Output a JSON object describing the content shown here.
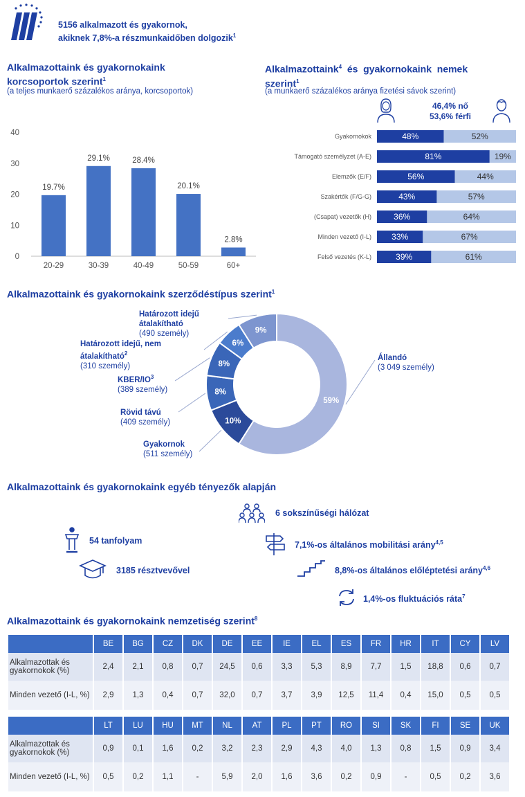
{
  "header": {
    "line1": "5156 alkalmazott és gyakornok,",
    "line2": "akiknek 7,8%-a részmunkaidőben dolgozik",
    "line2_sup": "1"
  },
  "age_section": {
    "title_line1": "Alkalmazottaink  és  gyakornokaink",
    "title_line2": "korcsoportok szerint",
    "title_sup": "1",
    "subtitle": "(a teljes munkaerő százalékos aránya, korcsoportok)"
  },
  "gender_section": {
    "title_line1": "Alkalmazottaink",
    "title_sup1": "4",
    "title_line1b": "  és  gyakornokaink  nemek",
    "title_line2": "szerint",
    "title_sup2": "1",
    "subtitle": "(a munkaerő százalékos aránya fizetési sávok szerint)",
    "summary_line1": "46,4% nő",
    "summary_line2": "53,6% férfi"
  },
  "contract_section": {
    "title": "Alkalmazottaink  és  gyakornokaink  szerződéstípus  szerint",
    "title_sup": "1"
  },
  "other_section": {
    "title": "Alkalmazottaink  és  gyakornokaink  egyéb  tényezők  alapján",
    "facts": {
      "courses": "54 tanfolyam",
      "participants": "3185 résztvevővel",
      "networks": "6 sokszínűségi hálózat",
      "mobility": "7,1%-os általános mobilitási arány",
      "mobility_sup": "4,5",
      "promotion": "8,8%-os általános előléptetési arány",
      "promotion_sup": "4,6",
      "turnover": "1,4%-os fluktuációs ráta",
      "turnover_sup": "7"
    }
  },
  "nationality_section": {
    "title": "Alkalmazottaink  és  gyakornokaink  nemzetiség  szerint",
    "title_sup": "8",
    "row1_label": "Alkalmazottak és gyakornokok (%)",
    "row2_label": "Minden vezető (I-L, %)",
    "table1": {
      "countries": [
        "BE",
        "BG",
        "CZ",
        "DK",
        "DE",
        "EE",
        "IE",
        "EL",
        "ES",
        "FR",
        "HR",
        "IT",
        "CY",
        "LV"
      ],
      "staff": [
        "2,4",
        "2,1",
        "0,8",
        "0,7",
        "24,5",
        "0,6",
        "3,3",
        "5,3",
        "8,9",
        "7,7",
        "1,5",
        "18,8",
        "0,6",
        "0,7"
      ],
      "managers": [
        "2,9",
        "1,3",
        "0,4",
        "0,7",
        "32,0",
        "0,7",
        "3,7",
        "3,9",
        "12,5",
        "11,4",
        "0,4",
        "15,0",
        "0,5",
        "0,5"
      ]
    },
    "table2": {
      "countries": [
        "LT",
        "LU",
        "HU",
        "MT",
        "NL",
        "AT",
        "PL",
        "PT",
        "RO",
        "SI",
        "SK",
        "FI",
        "SE",
        "UK"
      ],
      "staff": [
        "0,9",
        "0,1",
        "1,6",
        "0,2",
        "3,2",
        "2,3",
        "2,9",
        "4,3",
        "4,0",
        "1,3",
        "0,8",
        "1,5",
        "0,9",
        "3,4"
      ],
      "managers": [
        "0,5",
        "0,2",
        "1,1",
        "-",
        "5,9",
        "2,0",
        "1,6",
        "3,6",
        "0,2",
        "0,9",
        "-",
        "0,5",
        "0,2",
        "3,6"
      ]
    }
  },
  "chart_data": [
    {
      "type": "bar",
      "categories": [
        "20-29",
        "30-39",
        "40-49",
        "50-59",
        "60+"
      ],
      "values": [
        19.7,
        29.1,
        28.4,
        20.1,
        2.8
      ],
      "value_labels": [
        "19.7%",
        "29.1%",
        "28.4%",
        "20.1%",
        "2.8%"
      ],
      "yticks": [
        0,
        10,
        20,
        30,
        40
      ],
      "ylim": [
        0,
        40
      ],
      "grid": false,
      "color": "#4472c4"
    },
    {
      "type": "bar",
      "orientation": "horizontal-stacked",
      "categories": [
        "Gyakornokok",
        "Támogató személyzet (A-E)",
        "Elemzők (E/F)",
        "Szakértők (F/G-G)",
        "(Csapat) vezetők (H)",
        "Minden vezető (I-L)",
        "Felső vezetés (K-L)"
      ],
      "series": [
        {
          "values": [
            48,
            81,
            56,
            43,
            36,
            33,
            39
          ],
          "labels": [
            "48%",
            "81%",
            "56%",
            "43%",
            "36%",
            "33%",
            "39%"
          ],
          "color": "#1e3fa2"
        },
        {
          "values": [
            52,
            19,
            44,
            57,
            64,
            67,
            61
          ],
          "labels": [
            "52%",
            "19%",
            "44%",
            "57%",
            "64%",
            "67%",
            "61%"
          ],
          "color": "#b4c7e7"
        }
      ]
    },
    {
      "type": "pie",
      "donut": true,
      "slices": [
        {
          "name": "Állandó",
          "count": "(3 049 személy)",
          "value": 59,
          "label": "59%",
          "color": "#a9b6de"
        },
        {
          "name": "Gyakornok",
          "count": "(511 személy)",
          "value": 10,
          "label": "10%",
          "color": "#2b4a9a"
        },
        {
          "name": "Rövid távú",
          "count": "(409 személy)",
          "value": 8,
          "label": "8%",
          "color": "#3a66b8"
        },
        {
          "name": "KBER/IO",
          "name_sup": "3",
          "count": "(389 személy)",
          "value": 8,
          "label": "8%",
          "color": "#3a66b8"
        },
        {
          "name": "Határozott idejű, nem átalakítható",
          "name_sup": "2",
          "count": "(310 személy)",
          "value": 6,
          "label": "6%",
          "color": "#4b7ccc"
        },
        {
          "name": "Határozott idejű átalakítható",
          "count": "(490 személy)",
          "value": 9,
          "label": "9%",
          "color": "#7d95cf"
        }
      ]
    }
  ]
}
